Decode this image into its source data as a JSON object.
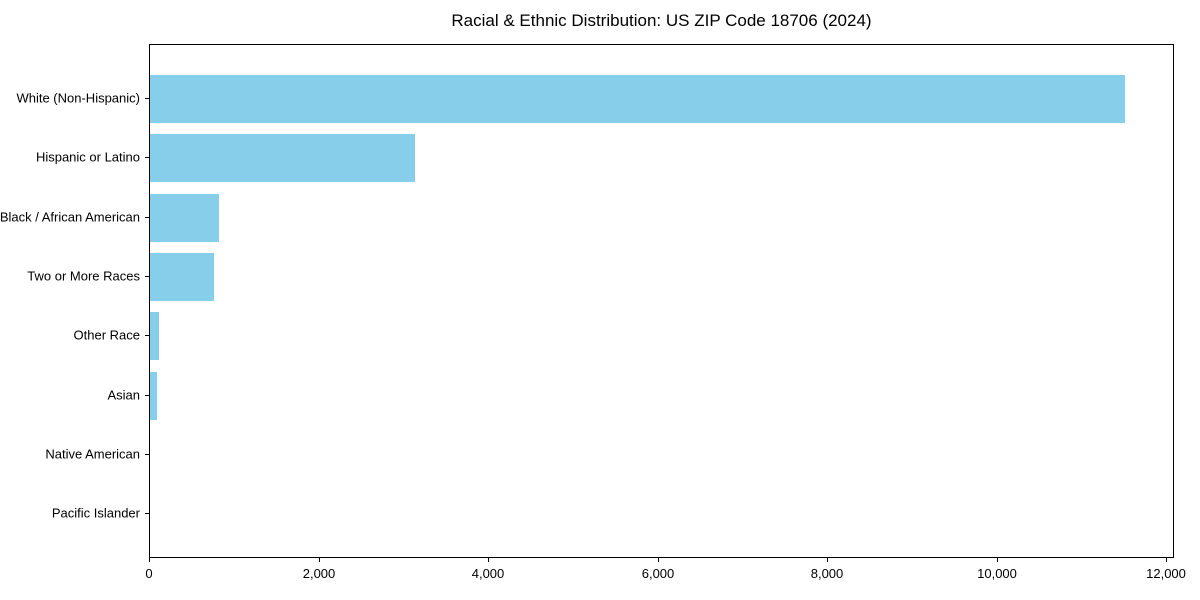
{
  "chart_data": {
    "type": "bar",
    "orientation": "horizontal",
    "title": "Racial & Ethnic Distribution: US ZIP Code 18706 (2024)",
    "categories": [
      "White (Non-Hispanic)",
      "Hispanic or Latino",
      "Black / African American",
      "Two or More Races",
      "Other Race",
      "Asian",
      "Native American",
      "Pacific Islander"
    ],
    "values": [
      11500,
      3130,
      810,
      755,
      110,
      80,
      0,
      0
    ],
    "xlabel": "",
    "ylabel": "",
    "xlim": [
      0,
      12070
    ],
    "xticks": [
      0,
      2000,
      4000,
      6000,
      8000,
      10000,
      12000
    ],
    "xtick_labels": [
      "0",
      "2,000",
      "4,000",
      "6,000",
      "8,000",
      "10,000",
      "12,000"
    ],
    "bar_color": "#87CEEB",
    "spine_color": "#000000",
    "grid": false,
    "legend": null
  }
}
